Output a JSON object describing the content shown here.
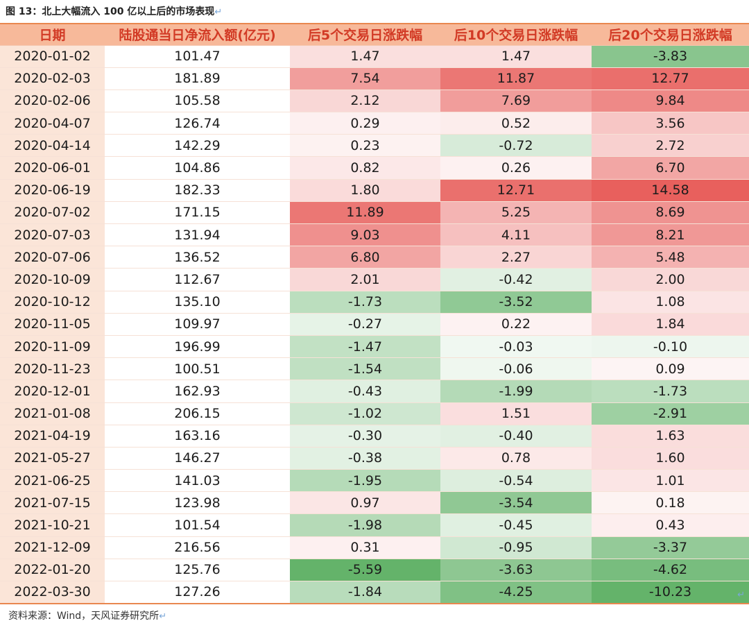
{
  "caption": "图 13：北上大幅流入 100 亿以上后的市场表现",
  "source": "资料来源：Wind，天风证券研究所",
  "colors": {
    "header_bg": "#f7b99a",
    "header_text": "#d23a25",
    "date_bg": "#fbe5d8",
    "positive": "#e8605d",
    "negative": "#64b36a",
    "rule": "#e9874f"
  },
  "table": {
    "headers": [
      "日期",
      "陆股通当日净流入额(亿元)",
      "后5个交易日涨跌幅",
      "后10个交易日涨跌幅",
      "后20个交易日涨跌幅"
    ],
    "rows": [
      [
        "2020-01-02",
        "101.47",
        "1.47",
        "1.47",
        "-3.83"
      ],
      [
        "2020-02-03",
        "181.89",
        "7.54",
        "11.87",
        "12.77"
      ],
      [
        "2020-02-06",
        "105.58",
        "2.12",
        "7.69",
        "9.84"
      ],
      [
        "2020-04-07",
        "126.74",
        "0.29",
        "0.52",
        "3.56"
      ],
      [
        "2020-04-14",
        "142.29",
        "0.23",
        "-0.72",
        "2.72"
      ],
      [
        "2020-06-01",
        "104.86",
        "0.82",
        "0.26",
        "6.70"
      ],
      [
        "2020-06-19",
        "182.33",
        "1.80",
        "12.71",
        "14.58"
      ],
      [
        "2020-07-02",
        "171.15",
        "11.89",
        "5.25",
        "8.69"
      ],
      [
        "2020-07-03",
        "131.94",
        "9.03",
        "4.11",
        "8.21"
      ],
      [
        "2020-07-06",
        "136.52",
        "6.80",
        "2.27",
        "5.48"
      ],
      [
        "2020-10-09",
        "112.67",
        "2.01",
        "-0.42",
        "2.00"
      ],
      [
        "2020-10-12",
        "135.10",
        "-1.73",
        "-3.52",
        "1.08"
      ],
      [
        "2020-11-05",
        "109.97",
        "-0.27",
        "0.22",
        "1.84"
      ],
      [
        "2020-11-09",
        "196.99",
        "-1.47",
        "-0.03",
        "-0.10"
      ],
      [
        "2020-11-23",
        "100.51",
        "-1.54",
        "-0.06",
        "0.09"
      ],
      [
        "2020-12-01",
        "162.93",
        "-0.43",
        "-1.99",
        "-1.73"
      ],
      [
        "2021-01-08",
        "206.15",
        "-1.02",
        "1.51",
        "-2.91"
      ],
      [
        "2021-04-19",
        "163.16",
        "-0.30",
        "-0.40",
        "1.63"
      ],
      [
        "2021-05-27",
        "146.27",
        "-0.38",
        "0.78",
        "1.60"
      ],
      [
        "2021-06-25",
        "141.03",
        "-1.95",
        "-0.54",
        "1.01"
      ],
      [
        "2021-07-15",
        "123.98",
        "0.97",
        "-3.54",
        "0.18"
      ],
      [
        "2021-10-21",
        "101.54",
        "-1.98",
        "-0.45",
        "0.43"
      ],
      [
        "2021-12-09",
        "216.56",
        "0.31",
        "-0.95",
        "-3.37"
      ],
      [
        "2022-01-20",
        "125.76",
        "-5.59",
        "-3.63",
        "-4.62"
      ],
      [
        "2022-03-30",
        "127.26",
        "-1.84",
        "-4.25",
        "-10.23"
      ]
    ]
  }
}
